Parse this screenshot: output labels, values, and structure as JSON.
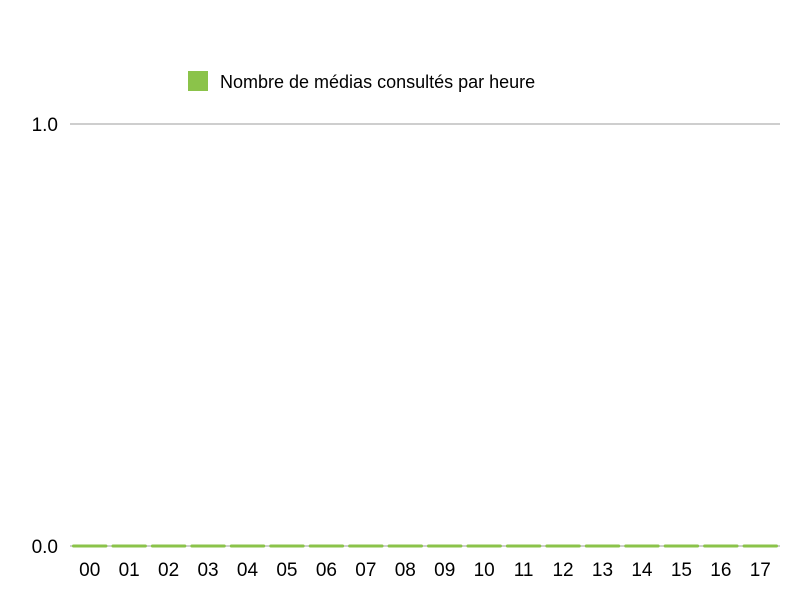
{
  "chart_data": {
    "type": "bar",
    "categories": [
      "00",
      "01",
      "02",
      "03",
      "04",
      "05",
      "06",
      "07",
      "08",
      "09",
      "10",
      "11",
      "12",
      "13",
      "14",
      "15",
      "16",
      "17"
    ],
    "series": [
      {
        "name": "Nombre de médias consultés par heure",
        "values": [
          0,
          0,
          0,
          0,
          0,
          0,
          0,
          0,
          0,
          0,
          0,
          0,
          0,
          0,
          0,
          0,
          0,
          0
        ],
        "color": "#8bc34a"
      }
    ],
    "ylim": [
      0,
      1
    ],
    "yticks": [
      "0.0",
      "1.0"
    ],
    "grid": true,
    "legend": "top"
  }
}
